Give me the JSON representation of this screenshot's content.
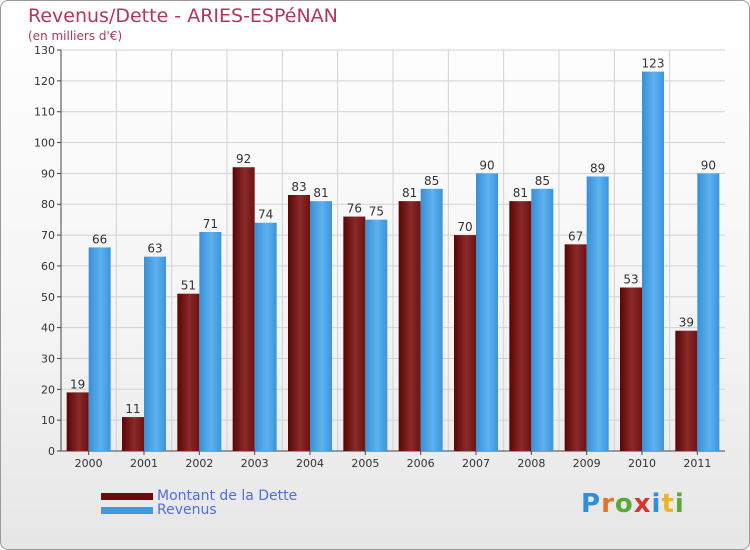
{
  "header": {
    "title": "Revenus/Dette - ARIES-ESPéNAN",
    "subtitle": "(en milliers d'€)"
  },
  "legend": [
    {
      "label": "Montant de la Dette",
      "color": "#6b0c0c"
    },
    {
      "label": "Revenus",
      "color": "#3f9be0"
    }
  ],
  "brand": {
    "letters": [
      "P",
      "r",
      "o",
      "x",
      "i",
      "t",
      "i"
    ]
  },
  "chart_data": {
    "type": "bar",
    "categories": [
      "2000",
      "2001",
      "2002",
      "2003",
      "2004",
      "2005",
      "2006",
      "2007",
      "2008",
      "2009",
      "2010",
      "2011"
    ],
    "series": [
      {
        "name": "Montant de la Dette",
        "color": "#7a1818",
        "values": [
          19,
          11,
          51,
          92,
          83,
          76,
          81,
          70,
          81,
          67,
          53,
          39
        ]
      },
      {
        "name": "Revenus",
        "color": "#4aa3e6",
        "values": [
          66,
          63,
          71,
          74,
          81,
          75,
          85,
          90,
          85,
          89,
          123,
          90
        ]
      }
    ],
    "yticks": [
      0,
      10,
      20,
      30,
      40,
      50,
      60,
      70,
      80,
      90,
      100,
      110,
      120,
      130
    ],
    "ylim": [
      0,
      130
    ],
    "grid": true,
    "legend_position": "bottom-left"
  }
}
